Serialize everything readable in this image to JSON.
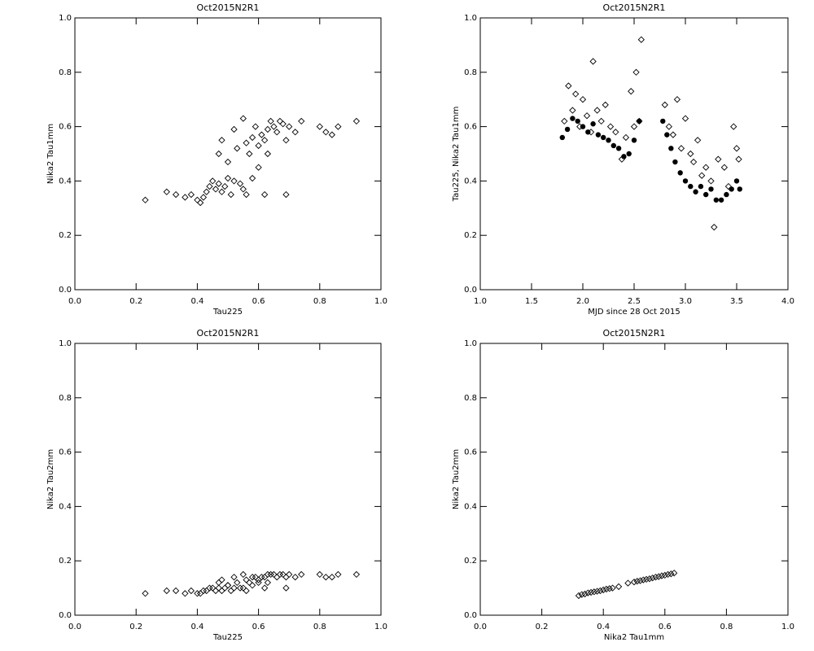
{
  "chart_data": [
    {
      "type": "scatter",
      "title": "Oct2015N2R1",
      "x_label": "Tau225",
      "y_label": "Nika2 Tau1mm",
      "xlim": [
        0,
        1
      ],
      "ylim": [
        0,
        1
      ],
      "xticks": [
        {
          "value": 0,
          "label": "0.0"
        },
        0.2,
        0.4,
        0.6,
        0.8,
        {
          "value": 1,
          "label": "1.0"
        }
      ],
      "yticks": [
        {
          "value": 0,
          "label": "0.0"
        },
        0.2,
        0.4,
        0.6,
        0.8,
        {
          "value": 1,
          "label": "1.0"
        }
      ],
      "series": [
        {
          "marker": "diamond",
          "color": "#000000",
          "x": [
            0.23,
            0.3,
            0.33,
            0.36,
            0.38,
            0.4,
            0.41,
            0.42,
            0.43,
            0.44,
            0.45,
            0.46,
            0.47,
            0.48,
            0.49,
            0.5,
            0.51,
            0.52,
            0.54,
            0.55,
            0.56,
            0.58,
            0.62,
            0.47,
            0.48,
            0.5,
            0.52,
            0.53,
            0.55,
            0.56,
            0.57,
            0.58,
            0.59,
            0.6,
            0.61,
            0.62,
            0.63,
            0.64,
            0.65,
            0.66,
            0.67,
            0.68,
            0.69,
            0.7,
            0.72,
            0.74,
            0.8,
            0.82,
            0.84,
            0.86,
            0.92,
            0.69,
            0.63,
            0.6
          ],
          "values": [
            0.33,
            0.36,
            0.35,
            0.34,
            0.35,
            0.33,
            0.32,
            0.34,
            0.36,
            0.38,
            0.4,
            0.37,
            0.39,
            0.36,
            0.38,
            0.41,
            0.35,
            0.4,
            0.39,
            0.37,
            0.35,
            0.41,
            0.35,
            0.5,
            0.55,
            0.47,
            0.59,
            0.52,
            0.63,
            0.54,
            0.5,
            0.56,
            0.6,
            0.53,
            0.57,
            0.55,
            0.59,
            0.62,
            0.6,
            0.58,
            0.62,
            0.61,
            0.55,
            0.6,
            0.58,
            0.62,
            0.6,
            0.58,
            0.57,
            0.6,
            0.62,
            0.35,
            0.5,
            0.45
          ]
        }
      ]
    },
    {
      "type": "scatter",
      "title": "Oct2015N2R1",
      "x_label": "MJD since 28 Oct 2015",
      "y_label": "Tau225, Nika2 Tau1mm",
      "xlim": [
        1,
        4
      ],
      "ylim": [
        0,
        1
      ],
      "xticks": [
        {
          "value": 1,
          "label": "1.0"
        },
        1.5,
        {
          "value": 2,
          "label": "2.0"
        },
        2.5,
        {
          "value": 3,
          "label": "3.0"
        },
        3.5,
        {
          "value": 4,
          "label": "4.0"
        }
      ],
      "yticks": [
        {
          "value": 0,
          "label": "0.0"
        },
        0.2,
        0.4,
        0.6,
        0.8,
        {
          "value": 1,
          "label": "1.0"
        }
      ],
      "series": [
        {
          "marker": "filled-circle",
          "color": "#000000",
          "x": [
            1.8,
            1.85,
            1.9,
            1.95,
            2.0,
            2.05,
            2.1,
            2.15,
            2.2,
            2.25,
            2.3,
            2.35,
            2.4,
            2.45,
            2.5,
            2.55,
            2.78,
            2.82,
            2.86,
            2.9,
            2.95,
            3.0,
            3.05,
            3.1,
            3.15,
            3.2,
            3.25,
            3.3,
            3.35,
            3.4,
            3.45,
            3.5,
            3.53
          ],
          "values": [
            0.56,
            0.59,
            0.63,
            0.62,
            0.6,
            0.58,
            0.61,
            0.57,
            0.56,
            0.55,
            0.53,
            0.52,
            0.49,
            0.5,
            0.55,
            0.62,
            0.62,
            0.57,
            0.52,
            0.47,
            0.43,
            0.4,
            0.38,
            0.36,
            0.38,
            0.35,
            0.37,
            0.33,
            0.33,
            0.35,
            0.37,
            0.4,
            0.37
          ]
        },
        {
          "marker": "diamond",
          "color": "#000000",
          "x": [
            1.82,
            1.86,
            1.9,
            1.93,
            1.97,
            2.0,
            2.04,
            2.08,
            2.1,
            2.14,
            2.18,
            2.22,
            2.27,
            2.32,
            2.38,
            2.42,
            2.47,
            2.5,
            2.52,
            2.55,
            2.57,
            2.8,
            2.84,
            2.88,
            2.92,
            2.96,
            3.0,
            3.05,
            3.08,
            3.12,
            3.16,
            3.2,
            3.25,
            3.28,
            3.32,
            3.38,
            3.42,
            3.47,
            3.5,
            3.52
          ],
          "values": [
            0.62,
            0.75,
            0.66,
            0.72,
            0.6,
            0.7,
            0.64,
            0.58,
            0.84,
            0.66,
            0.62,
            0.68,
            0.6,
            0.58,
            0.48,
            0.56,
            0.73,
            0.6,
            0.8,
            0.62,
            0.92,
            0.68,
            0.6,
            0.57,
            0.7,
            0.52,
            0.63,
            0.5,
            0.47,
            0.55,
            0.42,
            0.45,
            0.4,
            0.23,
            0.48,
            0.45,
            0.38,
            0.6,
            0.52,
            0.48
          ]
        }
      ]
    },
    {
      "type": "scatter",
      "title": "Oct2015N2R1",
      "x_label": "Tau225",
      "y_label": "Nika2 Tau2mm",
      "xlim": [
        0,
        1
      ],
      "ylim": [
        0,
        1
      ],
      "xticks": [
        {
          "value": 0,
          "label": "0.0"
        },
        0.2,
        0.4,
        0.6,
        0.8,
        {
          "value": 1,
          "label": "1.0"
        }
      ],
      "yticks": [
        {
          "value": 0,
          "label": "0.0"
        },
        0.2,
        0.4,
        0.6,
        0.8,
        {
          "value": 1,
          "label": "1.0"
        }
      ],
      "series": [
        {
          "marker": "diamond",
          "color": "#000000",
          "x": [
            0.23,
            0.3,
            0.33,
            0.36,
            0.38,
            0.4,
            0.41,
            0.42,
            0.43,
            0.44,
            0.45,
            0.46,
            0.47,
            0.48,
            0.49,
            0.5,
            0.51,
            0.52,
            0.54,
            0.55,
            0.56,
            0.58,
            0.62,
            0.47,
            0.48,
            0.5,
            0.52,
            0.53,
            0.55,
            0.56,
            0.57,
            0.58,
            0.59,
            0.6,
            0.61,
            0.62,
            0.63,
            0.64,
            0.65,
            0.66,
            0.67,
            0.68,
            0.69,
            0.7,
            0.72,
            0.74,
            0.8,
            0.82,
            0.84,
            0.86,
            0.92,
            0.69,
            0.63,
            0.6
          ],
          "values": [
            0.08,
            0.09,
            0.09,
            0.08,
            0.09,
            0.08,
            0.08,
            0.09,
            0.09,
            0.1,
            0.1,
            0.09,
            0.1,
            0.09,
            0.1,
            0.11,
            0.09,
            0.1,
            0.1,
            0.1,
            0.09,
            0.11,
            0.1,
            0.12,
            0.13,
            0.11,
            0.14,
            0.12,
            0.15,
            0.13,
            0.12,
            0.14,
            0.14,
            0.13,
            0.14,
            0.14,
            0.15,
            0.15,
            0.15,
            0.14,
            0.15,
            0.15,
            0.14,
            0.15,
            0.14,
            0.15,
            0.15,
            0.14,
            0.14,
            0.15,
            0.15,
            0.1,
            0.12,
            0.12
          ]
        }
      ]
    },
    {
      "type": "scatter",
      "title": "Oct2015N2R1",
      "x_label": "Nika2 Tau1mm",
      "y_label": "Nika2 Tau2mm",
      "xlim": [
        0,
        1
      ],
      "ylim": [
        0,
        1
      ],
      "xticks": [
        {
          "value": 0,
          "label": "0.0"
        },
        0.2,
        0.4,
        0.6,
        0.8,
        {
          "value": 1,
          "label": "1.0"
        }
      ],
      "yticks": [
        {
          "value": 0,
          "label": "0.0"
        },
        0.2,
        0.4,
        0.6,
        0.8,
        {
          "value": 1,
          "label": "1.0"
        }
      ],
      "series": [
        {
          "marker": "diamond",
          "color": "#000000",
          "x": [
            0.32,
            0.33,
            0.34,
            0.35,
            0.36,
            0.37,
            0.38,
            0.39,
            0.4,
            0.41,
            0.42,
            0.43,
            0.45,
            0.48,
            0.5,
            0.51,
            0.52,
            0.53,
            0.54,
            0.55,
            0.56,
            0.57,
            0.58,
            0.59,
            0.6,
            0.61,
            0.62,
            0.63
          ],
          "values": [
            0.072,
            0.076,
            0.078,
            0.082,
            0.084,
            0.086,
            0.088,
            0.09,
            0.093,
            0.096,
            0.098,
            0.1,
            0.105,
            0.118,
            0.122,
            0.125,
            0.127,
            0.13,
            0.132,
            0.134,
            0.137,
            0.14,
            0.142,
            0.145,
            0.147,
            0.15,
            0.152,
            0.155
          ]
        }
      ]
    }
  ]
}
